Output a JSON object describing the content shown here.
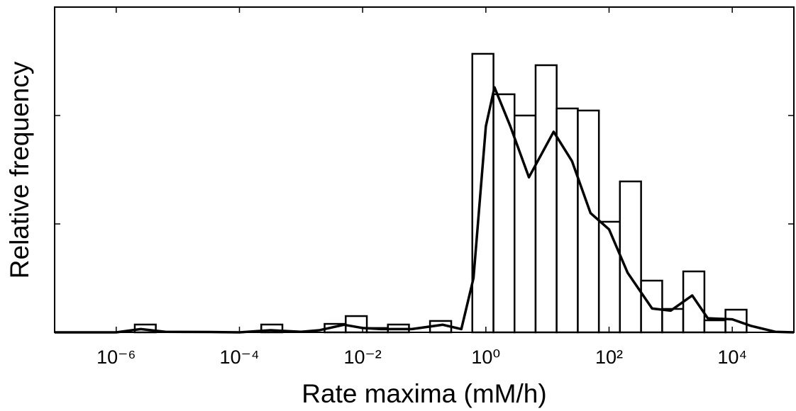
{
  "chart_data": {
    "type": "histogram",
    "xlabel": "Rate maxima (mM/h)",
    "ylabel": "Relative frequency",
    "xscale": "log",
    "xlim": [
      1e-07,
      100000
    ],
    "xticks": [
      {
        "value": 1e-06,
        "label": "10⁻⁶"
      },
      {
        "value": 0.0001,
        "label": "10⁻⁴"
      },
      {
        "value": 0.01,
        "label": "10⁻²"
      },
      {
        "value": 1,
        "label": "10⁰"
      },
      {
        "value": 100,
        "label": "10²"
      },
      {
        "value": 10000,
        "label": "10⁴"
      }
    ],
    "ylim": [
      0,
      3
    ],
    "yticks": [
      0,
      1,
      2,
      3
    ],
    "color": "#ffffff",
    "edgecolor": "#000000",
    "bins": [
      2e-06,
      4.39e-06,
      9.66e-06,
      2.13e-05,
      4.68e-05,
      0.000103,
      0.000226,
      0.000498,
      0.0011,
      0.00241,
      0.00531,
      0.0117,
      0.0257,
      0.0565,
      0.124,
      0.274,
      0.603,
      1.33,
      2.92,
      6.42,
      14.1,
      31.1,
      68.4,
      150,
      331,
      729,
      1600,
      3530,
      7760,
      17100
    ],
    "values": [
      0.072,
      0,
      0,
      0,
      0,
      0,
      0.072,
      0,
      0,
      0.078,
      0.15,
      0.04,
      0.072,
      0,
      0.105,
      0,
      2.569,
      2.196,
      2.0,
      2.464,
      2.065,
      2.046,
      1.02,
      1.392,
      0.477,
      0.216,
      0.562,
      0.111,
      0.209
    ],
    "line": {
      "color": "#000000",
      "x": [
        1e-07,
        1e-06,
        2.5e-06,
        6.3e-06,
        3.2e-05,
        0.0001,
        0.00032,
        0.001,
        0.002,
        0.005,
        0.01,
        0.02,
        0.063,
        0.2,
        0.4,
        0.63,
        1,
        1.38,
        2.5,
        5,
        12.6,
        25,
        50,
        100,
        200,
        500,
        1000,
        2240,
        4000,
        10000,
        20000,
        50000,
        100000
      ],
      "values": [
        0,
        0,
        0.03,
        0.005,
        0.003,
        0,
        0.02,
        0.005,
        0.02,
        0.07,
        0.04,
        0.03,
        0.03,
        0.07,
        0.03,
        0.5,
        1.9,
        2.26,
        1.9,
        1.43,
        1.85,
        1.58,
        1.1,
        0.95,
        0.55,
        0.22,
        0.2,
        0.34,
        0.13,
        0.12,
        0.06,
        0.005,
        0
      ]
    }
  }
}
